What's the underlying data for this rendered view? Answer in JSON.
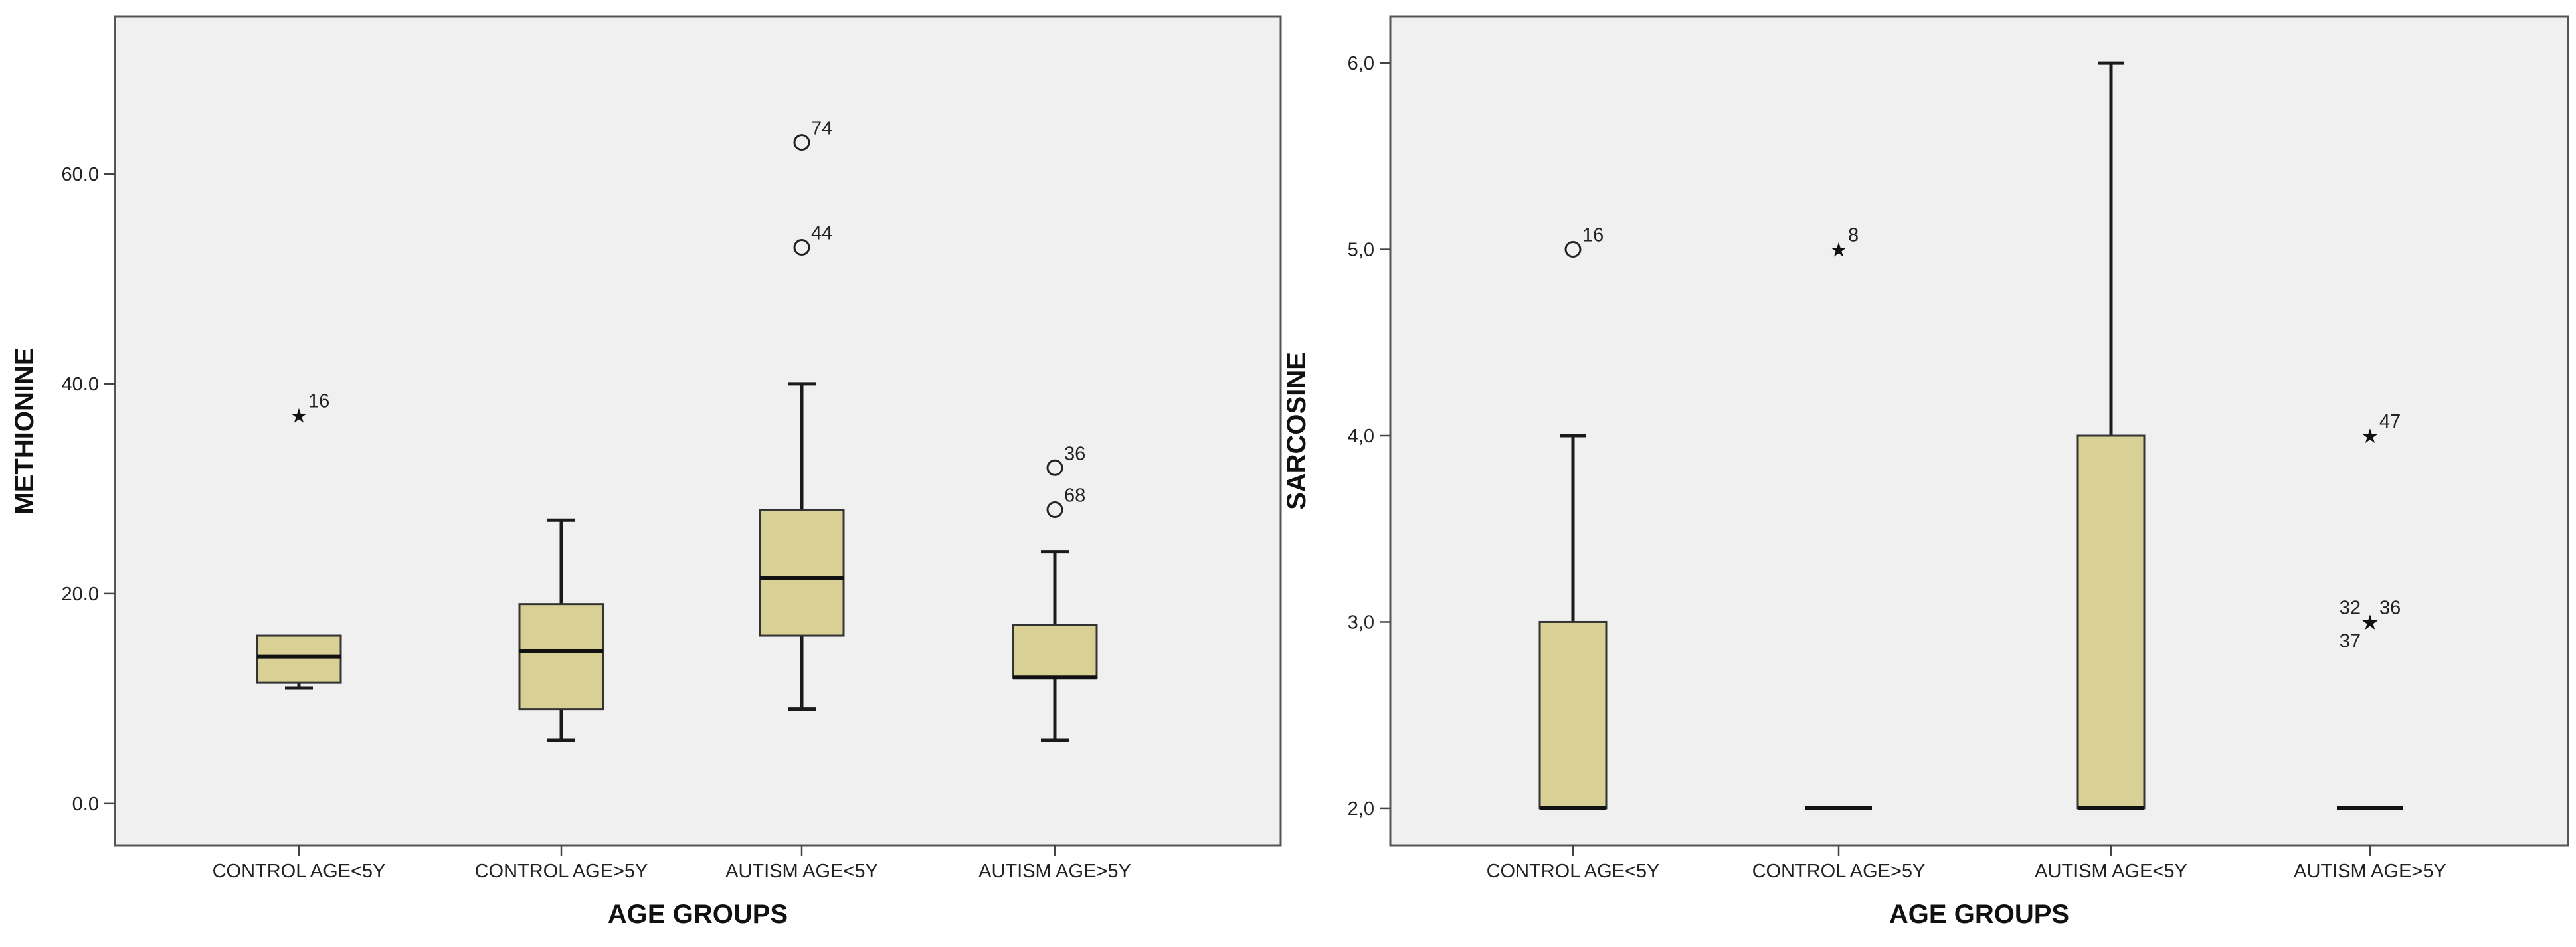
{
  "chart_data": [
    {
      "type": "boxplot",
      "title": "",
      "xlabel": "AGE GROUPS",
      "ylabel": "METHIONINE",
      "ylim": [
        -4,
        75
      ],
      "yticks": [
        0,
        20,
        40,
        60
      ],
      "ytick_labels": [
        "0.0",
        "20.0",
        "40.0",
        "60.0"
      ],
      "categories": [
        "CONTROL AGE<5Y",
        "CONTROL AGE>5Y",
        "AUTISM AGE<5Y",
        "AUTISM AGE>5Y"
      ],
      "boxes": [
        {
          "category": "CONTROL AGE<5Y",
          "whisker_low": 11,
          "q1": 11.5,
          "median": 14,
          "q3": 16,
          "whisker_high": 16
        },
        {
          "category": "CONTROL AGE>5Y",
          "whisker_low": 6,
          "q1": 9,
          "median": 14.5,
          "q3": 19,
          "whisker_high": 27
        },
        {
          "category": "AUTISM AGE<5Y",
          "whisker_low": 9,
          "q1": 16,
          "median": 21.5,
          "q3": 28,
          "whisker_high": 40
        },
        {
          "category": "AUTISM AGE>5Y",
          "whisker_low": 6,
          "q1": 12,
          "median": 12,
          "q3": 17,
          "whisker_high": 24
        }
      ],
      "outliers": [
        {
          "category": "CONTROL AGE<5Y",
          "value": 37,
          "marker": "star",
          "label": "16"
        },
        {
          "category": "AUTISM AGE<5Y",
          "value": 63,
          "marker": "circle",
          "label": "74"
        },
        {
          "category": "AUTISM AGE<5Y",
          "value": 53,
          "marker": "circle",
          "label": "44"
        },
        {
          "category": "AUTISM AGE>5Y",
          "value": 32,
          "marker": "circle",
          "label": "36"
        },
        {
          "category": "AUTISM AGE>5Y",
          "value": 28,
          "marker": "circle",
          "label": "68"
        }
      ]
    },
    {
      "type": "boxplot",
      "title": "",
      "xlabel": "AGE GROUPS",
      "ylabel": "SARCOSINE",
      "ylim": [
        1.8,
        6.25
      ],
      "yticks": [
        2,
        3,
        4,
        5,
        6
      ],
      "ytick_labels": [
        "2,0",
        "3,0",
        "4,0",
        "5,0",
        "6,0"
      ],
      "categories": [
        "CONTROL AGE<5Y",
        "CONTROL AGE>5Y",
        "AUTISM AGE<5Y",
        "AUTISM AGE>5Y"
      ],
      "boxes": [
        {
          "category": "CONTROL AGE<5Y",
          "whisker_low": 2,
          "q1": 2,
          "median": 2,
          "q3": 3,
          "whisker_high": 4
        },
        {
          "category": "CONTROL AGE>5Y",
          "whisker_low": 2,
          "q1": 2,
          "median": 2,
          "q3": 2,
          "whisker_high": 2
        },
        {
          "category": "AUTISM AGE<5Y",
          "whisker_low": 2,
          "q1": 2,
          "median": 2,
          "q3": 4,
          "whisker_high": 6
        },
        {
          "category": "AUTISM AGE>5Y",
          "whisker_low": 2,
          "q1": 2,
          "median": 2,
          "q3": 2,
          "whisker_high": 2
        }
      ],
      "outliers": [
        {
          "category": "CONTROL AGE<5Y",
          "value": 5,
          "marker": "circle",
          "label": "16"
        },
        {
          "category": "CONTROL AGE>5Y",
          "value": 5,
          "marker": "star",
          "label": "8"
        },
        {
          "category": "AUTISM AGE>5Y",
          "value": 4,
          "marker": "star",
          "label": "47"
        },
        {
          "category": "AUTISM AGE>5Y",
          "value": 3,
          "marker": "star",
          "label": "36"
        },
        {
          "category": "AUTISM AGE>5Y",
          "value": 3,
          "marker": "star",
          "label": "32"
        },
        {
          "category": "AUTISM AGE>5Y",
          "value": 3,
          "marker": "star",
          "label": "37"
        }
      ]
    }
  ]
}
